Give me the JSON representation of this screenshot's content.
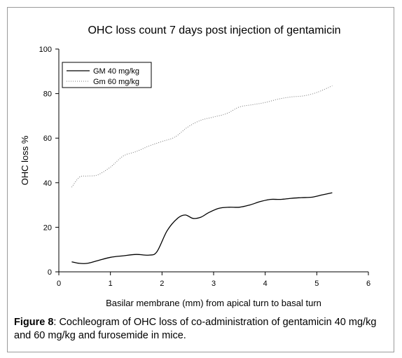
{
  "chart_data": {
    "type": "line",
    "title": "OHC loss count 7 days post injection of gentamicin",
    "xlabel": "Basilar membrane (mm) from apical turn to basal turn",
    "ylabel": "OHC loss %",
    "xlim": [
      0,
      6
    ],
    "ylim": [
      0,
      100
    ],
    "xticks": [
      "0",
      "1",
      "2",
      "3",
      "4",
      "5",
      "6"
    ],
    "yticks": [
      "0",
      "20",
      "40",
      "60",
      "80",
      "100"
    ],
    "grid": false,
    "legend_position": "top-left",
    "series": [
      {
        "name": "GM 40 mg/kg",
        "style": "solid",
        "color": "#000000",
        "x": [
          0.25,
          0.4,
          0.55,
          0.75,
          1.0,
          1.25,
          1.5,
          1.75,
          1.9,
          2.1,
          2.3,
          2.45,
          2.6,
          2.75,
          2.9,
          3.1,
          3.3,
          3.5,
          3.7,
          3.9,
          4.1,
          4.3,
          4.5,
          4.7,
          4.9,
          5.1,
          5.3
        ],
        "y": [
          4.5,
          3.8,
          3.8,
          5.0,
          6.5,
          7.2,
          7.8,
          7.5,
          9.0,
          18.5,
          24.0,
          25.5,
          24.0,
          24.5,
          26.5,
          28.5,
          29.0,
          29.0,
          30.0,
          31.5,
          32.5,
          32.5,
          33.0,
          33.3,
          33.5,
          34.5,
          35.5
        ]
      },
      {
        "name": "Gm 60 mg/kg",
        "style": "dotted",
        "color": "#777777",
        "x": [
          0.25,
          0.4,
          0.55,
          0.75,
          1.0,
          1.25,
          1.5,
          1.75,
          2.0,
          2.25,
          2.5,
          2.75,
          3.0,
          3.25,
          3.5,
          3.75,
          4.0,
          4.25,
          4.5,
          4.75,
          5.0,
          5.3
        ],
        "y": [
          38.0,
          42.5,
          43.0,
          43.5,
          47.0,
          52.0,
          54.0,
          56.5,
          58.5,
          60.5,
          65.0,
          68.0,
          69.5,
          71.0,
          74.0,
          75.0,
          76.0,
          77.5,
          78.5,
          79.0,
          80.5,
          83.5
        ]
      }
    ]
  },
  "caption": {
    "label": "Figure 8",
    "text": ": Cochleogram of OHC loss of co-administration of gentamicin 40 mg/kg and 60 mg/kg and furosemide in mice."
  }
}
